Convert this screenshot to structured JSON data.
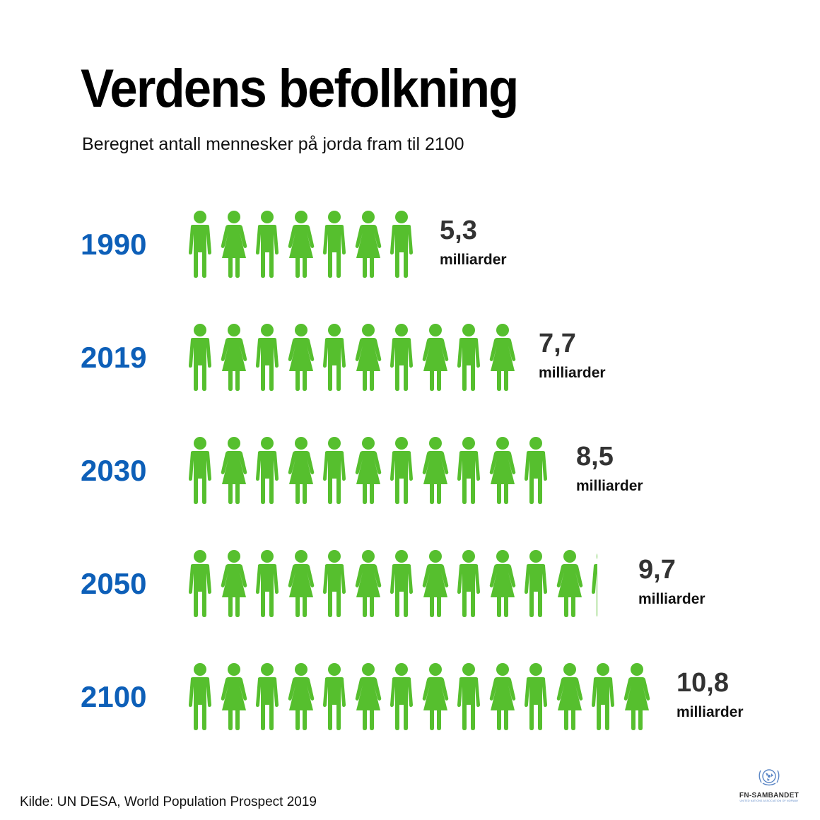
{
  "title": "Verdens befolkning",
  "subtitle": "Beregnet antall mennesker på jorda fram til 2100",
  "source": "Kilde: UN DESA, World Population Prospect 2019",
  "logo": {
    "name": "FN-SAMBANDET",
    "tagline": "UNITED NATIONS ASSOCIATION OF NORWAY"
  },
  "colors": {
    "figure": "#56bf2e",
    "year": "#0d5fb8",
    "value": "#333333"
  },
  "rows": [
    {
      "year": "1990",
      "value": "5,3",
      "unit": "milliarder"
    },
    {
      "year": "2019",
      "value": "7,7",
      "unit": "milliarder"
    },
    {
      "year": "2030",
      "value": "8,5",
      "unit": "milliarder"
    },
    {
      "year": "2050",
      "value": "9,7",
      "unit": "milliarder"
    },
    {
      "year": "2100",
      "value": "10,8",
      "unit": "milliarder"
    }
  ],
  "chart_data": {
    "type": "bar",
    "style": "pictogram",
    "title": "Verdens befolkning",
    "subtitle": "Beregnet antall mennesker på jorda fram til 2100",
    "categories": [
      "1990",
      "2019",
      "2030",
      "2050",
      "2100"
    ],
    "values": [
      5.3,
      7.7,
      8.5,
      9.7,
      10.8
    ],
    "value_labels": [
      "5,3 milliarder",
      "7,7 milliarder",
      "8,5 milliarder",
      "9,7 milliarder",
      "10,8 milliarder"
    ],
    "icon_counts": [
      7,
      10,
      11,
      12.3,
      14
    ],
    "unit": "milliarder",
    "orientation": "horizontal",
    "xlabel": "",
    "ylabel": "",
    "grid": false,
    "legend": null,
    "source": "Kilde: UN DESA, World Population Prospect 2019"
  }
}
